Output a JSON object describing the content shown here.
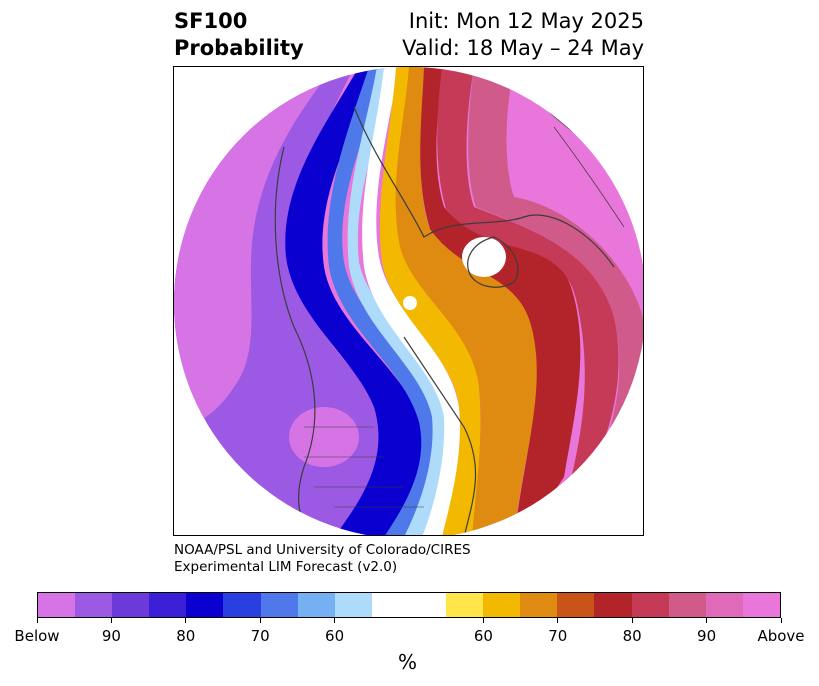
{
  "title": {
    "line1": "SF100",
    "line2": "Probability"
  },
  "init": {
    "line1": "Init: Mon 12 May 2025",
    "line2": "Valid: 18 May – 24 May"
  },
  "credit": {
    "line1": "NOAA/PSL and University of Colorado/CIRES",
    "line2": "Experimental LIM Forecast (v2.0)"
  },
  "colorbar": {
    "colors": [
      "#d674e6",
      "#9c59e4",
      "#6b3ad9",
      "#3a1fd6",
      "#0a00d0",
      "#2a3fe0",
      "#4f78ea",
      "#74b0f2",
      "#aedbfa",
      "#ffffff",
      "#ffe44a",
      "#f3b800",
      "#df8a10",
      "#c95418",
      "#b3232a",
      "#c43a57",
      "#d05a8a",
      "#e06aba",
      "#e976da"
    ],
    "tick_labels": [
      "Below",
      "90",
      "80",
      "70",
      "60",
      "60",
      "70",
      "80",
      "90",
      "Above"
    ],
    "unit": "%"
  },
  "map_colors": {
    "below_strong": "#d674e6",
    "below_mid": "#9c59e4",
    "below_deep": "#6b3ad9",
    "blue_dark": "#0a00d0",
    "blue_mid": "#4f78ea",
    "blue_light": "#aedbfa",
    "neutral": "#ffffff",
    "yellow": "#f3b800",
    "orange": "#df8a10",
    "red": "#b3232a",
    "rose": "#c43a57",
    "pink": "#d05a8a",
    "above_strong": "#e976da"
  }
}
